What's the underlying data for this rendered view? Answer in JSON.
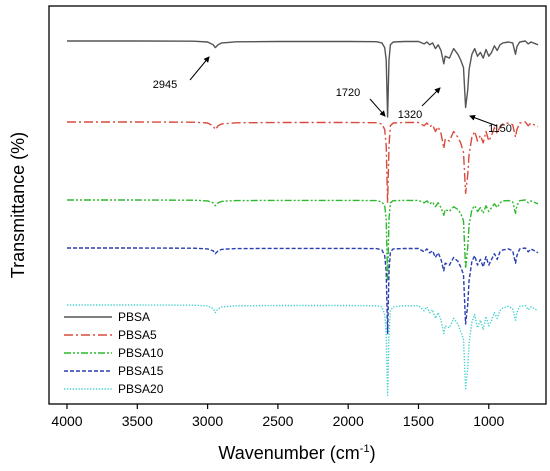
{
  "chart_data": {
    "type": "line",
    "xlabel": "Wavenumber (cm",
    "xlabel_sup": "-1",
    "xlabel_close": ")",
    "ylabel": "Transmittance (%)",
    "xlim": [
      4000,
      650
    ],
    "x_reversed": true,
    "xticks": [
      4000,
      3500,
      3000,
      2500,
      2000,
      1500,
      1000
    ],
    "xtick_labels": [
      "4000",
      "3500",
      "3000",
      "2500",
      "2000",
      "1500",
      "1000"
    ],
    "y_ticks_shown": false,
    "grid": false,
    "legend_position": "bottom-left",
    "annotations": [
      {
        "text": "2945",
        "x": 2945
      },
      {
        "text": "1720",
        "x": 1720
      },
      {
        "text": "1320",
        "x": 1320
      },
      {
        "text": "1150",
        "x": 1150
      }
    ],
    "series": [
      {
        "name": "PBSA",
        "color": "#555555",
        "dash": "solid",
        "baseline": 100,
        "points": [
          [
            4000,
            100
          ],
          [
            3500,
            100
          ],
          [
            3100,
            99.8
          ],
          [
            3000,
            99
          ],
          [
            2960,
            96
          ],
          [
            2945,
            93
          ],
          [
            2925,
            96
          ],
          [
            2900,
            98
          ],
          [
            2850,
            98.5
          ],
          [
            2800,
            99.2
          ],
          [
            2500,
            99.5
          ],
          [
            2000,
            99.5
          ],
          [
            1800,
            99.3
          ],
          [
            1760,
            98
          ],
          [
            1740,
            93
          ],
          [
            1730,
            80
          ],
          [
            1720,
            20
          ],
          [
            1710,
            80
          ],
          [
            1700,
            96
          ],
          [
            1680,
            99
          ],
          [
            1600,
            99.5
          ],
          [
            1500,
            99.5
          ],
          [
            1460,
            97
          ],
          [
            1440,
            99
          ],
          [
            1420,
            96
          ],
          [
            1400,
            98
          ],
          [
            1380,
            92
          ],
          [
            1360,
            96
          ],
          [
            1340,
            90
          ],
          [
            1320,
            76
          ],
          [
            1310,
            84
          ],
          [
            1280,
            82
          ],
          [
            1250,
            92
          ],
          [
            1220,
            86
          ],
          [
            1200,
            80
          ],
          [
            1180,
            72
          ],
          [
            1165,
            30
          ],
          [
            1150,
            48
          ],
          [
            1140,
            70
          ],
          [
            1120,
            86
          ],
          [
            1100,
            92
          ],
          [
            1080,
            84
          ],
          [
            1060,
            88
          ],
          [
            1040,
            82
          ],
          [
            1020,
            91
          ],
          [
            1000,
            84
          ],
          [
            980,
            88
          ],
          [
            960,
            95
          ],
          [
            940,
            90
          ],
          [
            920,
            96
          ],
          [
            900,
            98
          ],
          [
            860,
            99
          ],
          [
            830,
            98
          ],
          [
            810,
            86
          ],
          [
            800,
            94
          ],
          [
            780,
            99
          ],
          [
            740,
            100
          ],
          [
            720,
            97
          ],
          [
            700,
            99
          ],
          [
            650,
            96
          ]
        ]
      },
      {
        "name": "PBSA5",
        "color": "#d94a3d",
        "dash": "dashdot",
        "baseline": 100,
        "points": [
          [
            4000,
            100
          ],
          [
            3500,
            100
          ],
          [
            3100,
            99.8
          ],
          [
            3000,
            99
          ],
          [
            2960,
            96
          ],
          [
            2945,
            92
          ],
          [
            2925,
            96
          ],
          [
            2900,
            98
          ],
          [
            2850,
            98.5
          ],
          [
            2800,
            99.2
          ],
          [
            2500,
            99.5
          ],
          [
            2000,
            99.5
          ],
          [
            1800,
            99.3
          ],
          [
            1760,
            98
          ],
          [
            1740,
            92
          ],
          [
            1730,
            75
          ],
          [
            1720,
            15
          ],
          [
            1710,
            75
          ],
          [
            1700,
            96
          ],
          [
            1680,
            99
          ],
          [
            1600,
            99.5
          ],
          [
            1500,
            99.5
          ],
          [
            1460,
            96
          ],
          [
            1440,
            99
          ],
          [
            1420,
            95
          ],
          [
            1400,
            97
          ],
          [
            1380,
            90
          ],
          [
            1360,
            95
          ],
          [
            1340,
            88
          ],
          [
            1320,
            72
          ],
          [
            1310,
            82
          ],
          [
            1280,
            80
          ],
          [
            1250,
            90
          ],
          [
            1220,
            84
          ],
          [
            1200,
            78
          ],
          [
            1180,
            68
          ],
          [
            1165,
            25
          ],
          [
            1150,
            44
          ],
          [
            1140,
            66
          ],
          [
            1120,
            84
          ],
          [
            1100,
            90
          ],
          [
            1080,
            80
          ],
          [
            1060,
            86
          ],
          [
            1040,
            78
          ],
          [
            1020,
            90
          ],
          [
            1000,
            80
          ],
          [
            980,
            86
          ],
          [
            960,
            94
          ],
          [
            940,
            88
          ],
          [
            920,
            95
          ],
          [
            900,
            98
          ],
          [
            860,
            99
          ],
          [
            830,
            97
          ],
          [
            810,
            84
          ],
          [
            800,
            92
          ],
          [
            780,
            99
          ],
          [
            740,
            100
          ],
          [
            720,
            96
          ],
          [
            700,
            99
          ],
          [
            650,
            95
          ]
        ]
      },
      {
        "name": "PBSA10",
        "color": "#2eb82e",
        "dash": "dashdotdot",
        "baseline": 100,
        "points": [
          [
            4000,
            100
          ],
          [
            3500,
            100
          ],
          [
            3100,
            99.8
          ],
          [
            3000,
            99
          ],
          [
            2960,
            97
          ],
          [
            2945,
            94
          ],
          [
            2925,
            97
          ],
          [
            2900,
            98.5
          ],
          [
            2850,
            99
          ],
          [
            2800,
            99.4
          ],
          [
            2500,
            99.6
          ],
          [
            2000,
            99.6
          ],
          [
            1800,
            99.4
          ],
          [
            1760,
            98
          ],
          [
            1740,
            94
          ],
          [
            1730,
            80
          ],
          [
            1720,
            15
          ],
          [
            1710,
            80
          ],
          [
            1700,
            97
          ],
          [
            1680,
            99.3
          ],
          [
            1600,
            99.6
          ],
          [
            1500,
            99.6
          ],
          [
            1460,
            97
          ],
          [
            1440,
            99
          ],
          [
            1420,
            96
          ],
          [
            1400,
            98
          ],
          [
            1380,
            93
          ],
          [
            1360,
            97
          ],
          [
            1340,
            92
          ],
          [
            1320,
            84
          ],
          [
            1310,
            90
          ],
          [
            1280,
            88
          ],
          [
            1250,
            93
          ],
          [
            1220,
            90
          ],
          [
            1200,
            86
          ],
          [
            1180,
            78
          ],
          [
            1165,
            28
          ],
          [
            1150,
            50
          ],
          [
            1140,
            74
          ],
          [
            1120,
            90
          ],
          [
            1100,
            94
          ],
          [
            1080,
            88
          ],
          [
            1060,
            92
          ],
          [
            1040,
            86
          ],
          [
            1020,
            94
          ],
          [
            1000,
            88
          ],
          [
            980,
            92
          ],
          [
            960,
            96
          ],
          [
            940,
            92
          ],
          [
            920,
            97
          ],
          [
            900,
            99
          ],
          [
            860,
            99.4
          ],
          [
            830,
            98
          ],
          [
            810,
            86
          ],
          [
            800,
            94
          ],
          [
            780,
            99.3
          ],
          [
            740,
            100
          ],
          [
            720,
            97
          ],
          [
            700,
            99
          ],
          [
            650,
            96
          ]
        ]
      },
      {
        "name": "PBSA15",
        "color": "#2a3fb0",
        "dash": "dashed",
        "baseline": 100,
        "points": [
          [
            4000,
            100
          ],
          [
            3500,
            100
          ],
          [
            3100,
            99.8
          ],
          [
            3000,
            99
          ],
          [
            2960,
            97
          ],
          [
            2945,
            94
          ],
          [
            2925,
            97
          ],
          [
            2900,
            98.5
          ],
          [
            2850,
            99
          ],
          [
            2800,
            99.4
          ],
          [
            2500,
            99.6
          ],
          [
            2000,
            99.6
          ],
          [
            1800,
            99.4
          ],
          [
            1760,
            98
          ],
          [
            1740,
            92
          ],
          [
            1730,
            75
          ],
          [
            1720,
            10
          ],
          [
            1710,
            75
          ],
          [
            1700,
            96
          ],
          [
            1680,
            99
          ],
          [
            1600,
            99.5
          ],
          [
            1500,
            99.5
          ],
          [
            1460,
            96
          ],
          [
            1440,
            99
          ],
          [
            1420,
            95
          ],
          [
            1400,
            97
          ],
          [
            1380,
            90
          ],
          [
            1360,
            95
          ],
          [
            1340,
            88
          ],
          [
            1320,
            76
          ],
          [
            1310,
            84
          ],
          [
            1280,
            82
          ],
          [
            1250,
            90
          ],
          [
            1220,
            86
          ],
          [
            1200,
            80
          ],
          [
            1180,
            72
          ],
          [
            1165,
            20
          ],
          [
            1150,
            40
          ],
          [
            1140,
            66
          ],
          [
            1120,
            86
          ],
          [
            1100,
            92
          ],
          [
            1080,
            82
          ],
          [
            1060,
            88
          ],
          [
            1040,
            80
          ],
          [
            1020,
            91
          ],
          [
            1000,
            82
          ],
          [
            980,
            88
          ],
          [
            960,
            94
          ],
          [
            940,
            88
          ],
          [
            920,
            96
          ],
          [
            900,
            98
          ],
          [
            860,
            99
          ],
          [
            830,
            97
          ],
          [
            810,
            84
          ],
          [
            800,
            92
          ],
          [
            780,
            99
          ],
          [
            740,
            100
          ],
          [
            720,
            96
          ],
          [
            700,
            99
          ],
          [
            650,
            95
          ]
        ]
      },
      {
        "name": "PBSA20",
        "color": "#40d0d0",
        "dash": "dotted",
        "baseline": 100,
        "points": [
          [
            4000,
            100
          ],
          [
            3500,
            100
          ],
          [
            3100,
            99.8
          ],
          [
            3000,
            99
          ],
          [
            2960,
            96
          ],
          [
            2945,
            92
          ],
          [
            2925,
            96
          ],
          [
            2900,
            98
          ],
          [
            2850,
            98.5
          ],
          [
            2800,
            99.2
          ],
          [
            2500,
            99.5
          ],
          [
            2000,
            99.5
          ],
          [
            1800,
            99.3
          ],
          [
            1760,
            98
          ],
          [
            1740,
            90
          ],
          [
            1730,
            70
          ],
          [
            1720,
            5
          ],
          [
            1710,
            70
          ],
          [
            1700,
            94
          ],
          [
            1680,
            98
          ],
          [
            1600,
            99.3
          ],
          [
            1500,
            99.3
          ],
          [
            1460,
            94
          ],
          [
            1440,
            98
          ],
          [
            1420,
            92
          ],
          [
            1400,
            95
          ],
          [
            1380,
            86
          ],
          [
            1360,
            92
          ],
          [
            1340,
            84
          ],
          [
            1320,
            70
          ],
          [
            1310,
            78
          ],
          [
            1280,
            76
          ],
          [
            1250,
            86
          ],
          [
            1220,
            80
          ],
          [
            1200,
            72
          ],
          [
            1180,
            64
          ],
          [
            1165,
            12
          ],
          [
            1150,
            34
          ],
          [
            1140,
            60
          ],
          [
            1120,
            82
          ],
          [
            1100,
            90
          ],
          [
            1080,
            76
          ],
          [
            1060,
            84
          ],
          [
            1040,
            74
          ],
          [
            1020,
            88
          ],
          [
            1000,
            78
          ],
          [
            980,
            84
          ],
          [
            960,
            92
          ],
          [
            940,
            86
          ],
          [
            920,
            94
          ],
          [
            900,
            97
          ],
          [
            860,
            98.5
          ],
          [
            830,
            96
          ],
          [
            810,
            84
          ],
          [
            800,
            92
          ],
          [
            780,
            98.5
          ],
          [
            740,
            99.5
          ],
          [
            720,
            95
          ],
          [
            700,
            98
          ],
          [
            650,
            94
          ]
        ]
      }
    ]
  }
}
